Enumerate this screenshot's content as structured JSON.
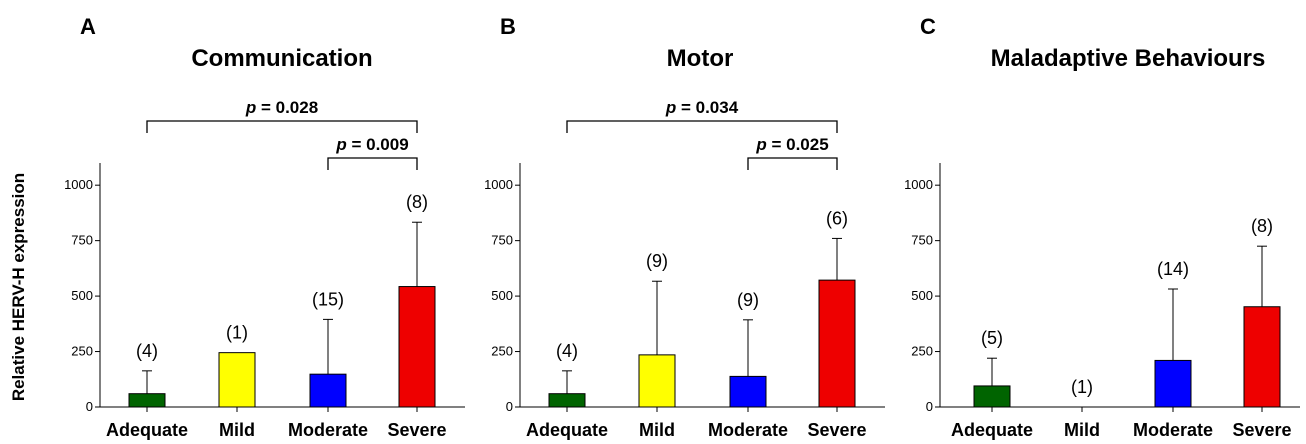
{
  "figure": {
    "y_axis_label": "Relative HERV-H expression"
  },
  "chart_data": [
    {
      "type": "bar",
      "panel": "A",
      "title": "Communication",
      "categories": [
        "Adequate",
        "Mild",
        "Moderate",
        "Severe"
      ],
      "values": [
        60,
        245,
        148,
        543
      ],
      "errors": [
        103,
        0,
        247,
        290
      ],
      "n_labels": [
        "(4)",
        "(1)",
        "(15)",
        "(8)"
      ],
      "colors": [
        "#006400",
        "#ffff00",
        "#0000ff",
        "#ee0000"
      ],
      "ylim": [
        0,
        1100
      ],
      "yticks": [
        0,
        250,
        500,
        750,
        1000
      ],
      "significance": [
        {
          "from": 0,
          "to": 3,
          "p_label": "p",
          "p_value": " = 0.028",
          "level": 1
        },
        {
          "from": 2,
          "to": 3,
          "p_label": "p",
          "p_value": " = 0.009",
          "level": 0
        }
      ]
    },
    {
      "type": "bar",
      "panel": "B",
      "title": "Motor",
      "categories": [
        "Adequate",
        "Mild",
        "Moderate",
        "Severe"
      ],
      "values": [
        60,
        235,
        138,
        572
      ],
      "errors": [
        103,
        332,
        255,
        188
      ],
      "n_labels": [
        "(4)",
        "(9)",
        "(9)",
        "(6)"
      ],
      "colors": [
        "#006400",
        "#ffff00",
        "#0000ff",
        "#ee0000"
      ],
      "ylim": [
        0,
        1100
      ],
      "yticks": [
        0,
        250,
        500,
        750,
        1000
      ],
      "significance": [
        {
          "from": 0,
          "to": 3,
          "p_label": "p",
          "p_value": " = 0.034",
          "level": 1
        },
        {
          "from": 2,
          "to": 3,
          "p_label": "p",
          "p_value": " = 0.025",
          "level": 0
        }
      ]
    },
    {
      "type": "bar",
      "panel": "C",
      "title": "Maladaptive Behaviours",
      "categories": [
        "Adequate",
        "Mild",
        "Moderate",
        "Severe"
      ],
      "values": [
        95,
        0,
        210,
        452
      ],
      "errors": [
        125,
        0,
        322,
        273
      ],
      "n_labels": [
        "(5)",
        "(1)",
        "(14)",
        "(8)"
      ],
      "colors": [
        "#006400",
        "#ffff00",
        "#0000ff",
        "#ee0000"
      ],
      "ylim": [
        0,
        1100
      ],
      "yticks": [
        0,
        250,
        500,
        750,
        1000
      ],
      "significance": []
    }
  ]
}
